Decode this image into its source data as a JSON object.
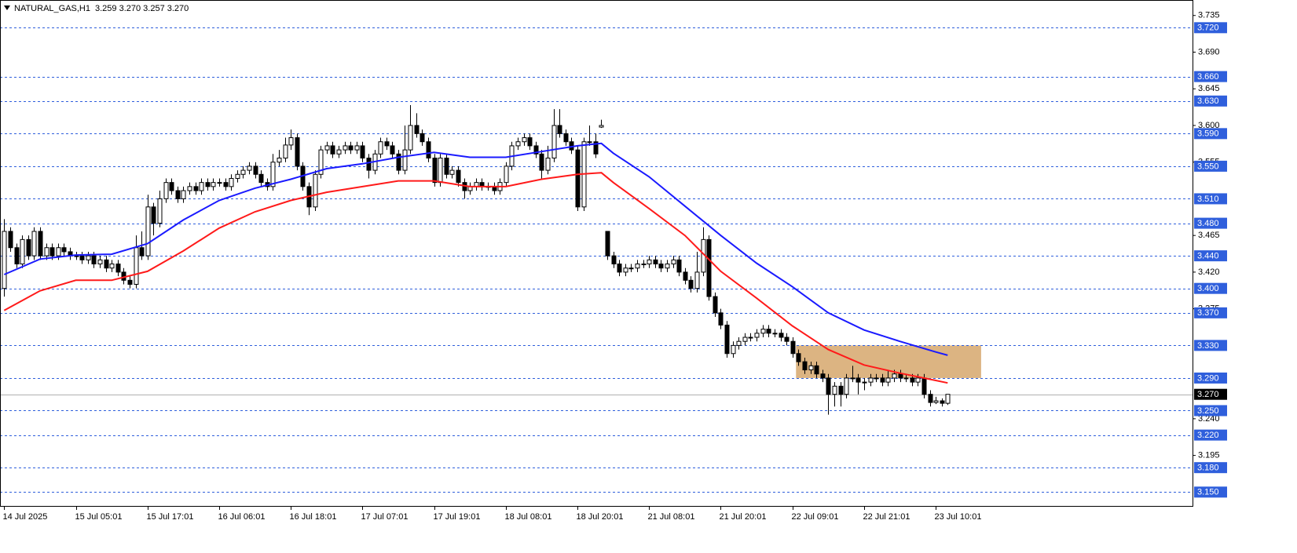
{
  "chart_data": {
    "type": "candlestick",
    "title": "NATURAL_GAS,H1",
    "quote": "3.259 3.270 3.257 3.270",
    "xlim": [
      -0.7,
      199
    ],
    "ylim": [
      3.133,
      3.754
    ],
    "xticks": [
      {
        "value": 0,
        "label": "14 Jul 2025"
      },
      {
        "value": 12,
        "label": "15 Jul 05:01"
      },
      {
        "value": 24,
        "label": "15 Jul 17:01"
      },
      {
        "value": 36,
        "label": "16 Jul 06:01"
      },
      {
        "value": 48,
        "label": "16 Jul 18:01"
      },
      {
        "value": 60,
        "label": "17 Jul 07:01"
      },
      {
        "value": 72,
        "label": "17 Jul 19:01"
      },
      {
        "value": 84,
        "label": "18 Jul 08:01"
      },
      {
        "value": 96,
        "label": "18 Jul 20:01"
      },
      {
        "value": 108,
        "label": "21 Jul 08:01"
      },
      {
        "value": 120,
        "label": "21 Jul 20:01"
      },
      {
        "value": 132,
        "label": "22 Jul 09:01"
      },
      {
        "value": 144,
        "label": "22 Jul 21:01"
      },
      {
        "value": 156,
        "label": "23 Jul 10:01"
      }
    ],
    "yticks": [
      3.735,
      {
        "value": 3.69,
        "label": "3.690"
      },
      3.645,
      {
        "value": 3.6,
        "label": "3.600"
      },
      3.555,
      3.465,
      {
        "value": 3.42,
        "label": "3.420"
      },
      3.375,
      {
        "value": 3.24,
        "label": "3.240"
      },
      3.195
    ],
    "ohlc": {
      "open": [
        3.4,
        3.47,
        3.45,
        3.43,
        3.46,
        3.44,
        3.47,
        3.44,
        3.45,
        3.44,
        3.45,
        3.445,
        3.44,
        3.44,
        3.435,
        3.44,
        3.43,
        3.435,
        3.425,
        3.43,
        3.42,
        3.41,
        3.405,
        3.45,
        3.44,
        3.5,
        3.48,
        3.51,
        3.53,
        3.52,
        3.51,
        3.52,
        3.525,
        3.52,
        3.53,
        3.525,
        3.53,
        3.53,
        3.525,
        3.535,
        3.54,
        3.545,
        3.55,
        3.54,
        3.53,
        3.525,
        3.555,
        3.56,
        3.576,
        3.585,
        3.55,
        3.525,
        3.5,
        3.54,
        3.57,
        3.575,
        3.565,
        3.57,
        3.575,
        3.57,
        3.575,
        3.56,
        3.545,
        3.565,
        3.58,
        3.575,
        3.565,
        3.545,
        3.57,
        3.6,
        3.59,
        3.58,
        3.56,
        3.53,
        3.56,
        3.54,
        3.545,
        3.53,
        3.52,
        3.525,
        3.53,
        3.525,
        3.525,
        3.52,
        3.53,
        3.55,
        3.575,
        3.58,
        3.585,
        3.575,
        3.565,
        3.545,
        3.56,
        3.6,
        3.59,
        3.58,
        3.57,
        3.5,
        3.58,
        3.58,
        3.598,
        3.47,
        3.44,
        3.43,
        3.42,
        3.425,
        3.425,
        3.43,
        3.43,
        3.435,
        3.43,
        3.425,
        3.43,
        3.435,
        3.42,
        3.41,
        3.4,
        3.42,
        3.46,
        3.39,
        3.37,
        3.355,
        3.32,
        3.33,
        3.335,
        3.34,
        3.34,
        3.345,
        3.35,
        3.345,
        3.345,
        3.34,
        3.335,
        3.32,
        3.31,
        3.3,
        3.305,
        3.295,
        3.29,
        3.27,
        3.28,
        3.27,
        3.29,
        3.29,
        3.285,
        3.285,
        3.29,
        3.29,
        3.285,
        3.29,
        3.295,
        3.29,
        3.29,
        3.285,
        3.29,
        3.27,
        3.26,
        3.262,
        3.259
      ],
      "high": [
        3.485,
        3.475,
        3.455,
        3.465,
        3.465,
        3.475,
        3.475,
        3.455,
        3.455,
        3.455,
        3.455,
        3.45,
        3.445,
        3.445,
        3.445,
        3.445,
        3.44,
        3.44,
        3.435,
        3.435,
        3.425,
        3.415,
        3.465,
        3.47,
        3.515,
        3.505,
        3.52,
        3.535,
        3.535,
        3.525,
        3.525,
        3.53,
        3.53,
        3.535,
        3.535,
        3.535,
        3.535,
        3.535,
        3.54,
        3.545,
        3.55,
        3.555,
        3.555,
        3.545,
        3.535,
        3.565,
        3.57,
        3.585,
        3.595,
        3.59,
        3.555,
        3.53,
        3.545,
        3.575,
        3.58,
        3.58,
        3.575,
        3.58,
        3.58,
        3.58,
        3.58,
        3.565,
        3.57,
        3.585,
        3.585,
        3.58,
        3.57,
        3.6,
        3.625,
        3.615,
        3.595,
        3.585,
        3.565,
        3.565,
        3.565,
        3.55,
        3.55,
        3.535,
        3.53,
        3.535,
        3.535,
        3.53,
        3.53,
        3.535,
        3.555,
        3.58,
        3.585,
        3.59,
        3.59,
        3.58,
        3.57,
        3.575,
        3.62,
        3.62,
        3.595,
        3.585,
        3.575,
        3.585,
        3.6,
        3.59,
        3.607,
        3.47,
        3.445,
        3.435,
        3.43,
        3.43,
        3.435,
        3.435,
        3.44,
        3.44,
        3.435,
        3.435,
        3.44,
        3.44,
        3.425,
        3.415,
        3.445,
        3.475,
        3.465,
        3.395,
        3.375,
        3.36,
        3.335,
        3.34,
        3.345,
        3.345,
        3.35,
        3.355,
        3.355,
        3.35,
        3.35,
        3.345,
        3.34,
        3.325,
        3.315,
        3.31,
        3.31,
        3.3,
        3.295,
        3.285,
        3.285,
        3.295,
        3.305,
        3.295,
        3.29,
        3.295,
        3.295,
        3.295,
        3.3,
        3.3,
        3.3,
        3.295,
        3.295,
        3.295,
        3.295,
        3.275,
        3.267,
        3.265,
        3.27
      ],
      "low": [
        3.39,
        3.445,
        3.425,
        3.425,
        3.435,
        3.435,
        3.435,
        3.435,
        3.435,
        3.435,
        3.44,
        3.435,
        3.435,
        3.43,
        3.43,
        3.425,
        3.425,
        3.42,
        3.42,
        3.415,
        3.405,
        3.4,
        3.4,
        3.435,
        3.435,
        3.465,
        3.475,
        3.505,
        3.515,
        3.505,
        3.505,
        3.515,
        3.515,
        3.515,
        3.52,
        3.52,
        3.525,
        3.52,
        3.52,
        3.53,
        3.535,
        3.54,
        3.535,
        3.525,
        3.52,
        3.52,
        3.55,
        3.555,
        3.57,
        3.545,
        3.52,
        3.49,
        3.495,
        3.535,
        3.565,
        3.56,
        3.56,
        3.565,
        3.565,
        3.565,
        3.555,
        3.535,
        3.54,
        3.56,
        3.57,
        3.56,
        3.54,
        3.54,
        3.565,
        3.585,
        3.575,
        3.555,
        3.525,
        3.525,
        3.535,
        3.535,
        3.525,
        3.51,
        3.515,
        3.52,
        3.52,
        3.52,
        3.515,
        3.515,
        3.525,
        3.545,
        3.57,
        3.575,
        3.57,
        3.56,
        3.535,
        3.54,
        3.555,
        3.585,
        3.575,
        3.565,
        3.495,
        3.495,
        3.575,
        3.56,
        3.597,
        3.435,
        3.425,
        3.415,
        3.415,
        3.42,
        3.42,
        3.425,
        3.425,
        3.425,
        3.42,
        3.42,
        3.425,
        3.415,
        3.405,
        3.395,
        3.395,
        3.415,
        3.385,
        3.365,
        3.35,
        3.315,
        3.315,
        3.325,
        3.33,
        3.335,
        3.335,
        3.34,
        3.34,
        3.34,
        3.335,
        3.33,
        3.315,
        3.305,
        3.295,
        3.295,
        3.29,
        3.285,
        3.245,
        3.255,
        3.255,
        3.265,
        3.285,
        3.27,
        3.275,
        3.28,
        3.285,
        3.28,
        3.28,
        3.285,
        3.285,
        3.285,
        3.28,
        3.28,
        3.265,
        3.255,
        3.258,
        3.255,
        3.257
      ],
      "close": [
        3.47,
        3.45,
        3.43,
        3.46,
        3.44,
        3.47,
        3.44,
        3.45,
        3.44,
        3.45,
        3.445,
        3.44,
        3.44,
        3.435,
        3.44,
        3.43,
        3.435,
        3.425,
        3.43,
        3.42,
        3.41,
        3.405,
        3.45,
        3.44,
        3.5,
        3.48,
        3.51,
        3.53,
        3.52,
        3.51,
        3.52,
        3.525,
        3.52,
        3.53,
        3.525,
        3.53,
        3.53,
        3.525,
        3.535,
        3.54,
        3.545,
        3.55,
        3.54,
        3.53,
        3.525,
        3.555,
        3.56,
        3.576,
        3.585,
        3.55,
        3.525,
        3.5,
        3.54,
        3.57,
        3.575,
        3.565,
        3.57,
        3.575,
        3.57,
        3.575,
        3.56,
        3.545,
        3.565,
        3.58,
        3.575,
        3.565,
        3.545,
        3.57,
        3.6,
        3.59,
        3.58,
        3.56,
        3.53,
        3.56,
        3.54,
        3.545,
        3.53,
        3.52,
        3.525,
        3.53,
        3.525,
        3.525,
        3.52,
        3.53,
        3.55,
        3.575,
        3.58,
        3.585,
        3.575,
        3.565,
        3.545,
        3.56,
        3.6,
        3.59,
        3.58,
        3.57,
        3.5,
        3.58,
        3.58,
        3.565,
        3.6,
        3.44,
        3.43,
        3.42,
        3.425,
        3.425,
        3.43,
        3.43,
        3.435,
        3.43,
        3.425,
        3.43,
        3.435,
        3.42,
        3.41,
        3.4,
        3.42,
        3.46,
        3.39,
        3.37,
        3.355,
        3.32,
        3.33,
        3.335,
        3.34,
        3.34,
        3.345,
        3.35,
        3.345,
        3.345,
        3.34,
        3.335,
        3.32,
        3.31,
        3.3,
        3.305,
        3.295,
        3.29,
        3.27,
        3.28,
        3.27,
        3.29,
        3.29,
        3.285,
        3.285,
        3.29,
        3.29,
        3.285,
        3.29,
        3.295,
        3.29,
        3.29,
        3.285,
        3.29,
        3.27,
        3.26,
        3.262,
        3.259,
        3.27
      ]
    },
    "lines": [
      {
        "color": "#1a1aff",
        "x": [
          0,
          6,
          12,
          18,
          24,
          30,
          36,
          42,
          48,
          54,
          60,
          66,
          72,
          78,
          84,
          90,
          96,
          100,
          102,
          108,
          114,
          120,
          126,
          132,
          138,
          144,
          150,
          156,
          158
        ],
        "values": [
          3.417,
          3.436,
          3.441,
          3.442,
          3.455,
          3.484,
          3.508,
          3.523,
          3.534,
          3.547,
          3.553,
          3.561,
          3.567,
          3.561,
          3.561,
          3.568,
          3.575,
          3.578,
          3.566,
          3.537,
          3.501,
          3.465,
          3.431,
          3.402,
          3.37,
          3.349,
          3.335,
          3.322,
          3.318
        ]
      },
      {
        "color": "#ff1a1a",
        "x": [
          0,
          6,
          12,
          18,
          24,
          30,
          36,
          42,
          48,
          54,
          60,
          66,
          72,
          78,
          84,
          90,
          96,
          100,
          102,
          108,
          114,
          120,
          126,
          132,
          138,
          144,
          150,
          156,
          158
        ],
        "values": [
          3.373,
          3.397,
          3.41,
          3.41,
          3.421,
          3.446,
          3.474,
          3.494,
          3.508,
          3.518,
          3.525,
          3.532,
          3.532,
          3.525,
          3.525,
          3.534,
          3.54,
          3.542,
          3.53,
          3.498,
          3.465,
          3.421,
          3.388,
          3.354,
          3.325,
          3.306,
          3.296,
          3.287,
          3.284
        ]
      }
    ],
    "zone": {
      "low": 3.29,
      "high": 3.33,
      "from": 132.6,
      "to": 163.6,
      "color": "#dcb482"
    },
    "levels": {
      "color": "#2f5fdc",
      "values": [
        {
          "value": 3.72,
          "label": "3.720"
        },
        {
          "value": 3.66,
          "label": "3.660"
        },
        {
          "value": 3.63,
          "label": "3.630"
        },
        {
          "value": 3.59,
          "label": "3.590"
        },
        {
          "value": 3.55,
          "label": "3.550"
        },
        {
          "value": 3.51,
          "label": "3.510"
        },
        {
          "value": 3.48,
          "label": "3.480"
        },
        {
          "value": 3.44,
          "label": "3.440"
        },
        {
          "value": 3.4,
          "label": "3.400"
        },
        {
          "value": 3.37,
          "label": "3.370"
        },
        {
          "value": 3.33,
          "label": "3.330"
        },
        {
          "value": 3.29,
          "label": "3.290"
        },
        {
          "value": 3.25,
          "label": "3.250"
        },
        {
          "value": 3.22,
          "label": "3.220"
        },
        {
          "value": 3.18,
          "label": "3.180"
        },
        {
          "value": 3.15,
          "label": "3.150"
        }
      ]
    },
    "last_price": {
      "value": 3.27,
      "label": "3.270"
    }
  }
}
